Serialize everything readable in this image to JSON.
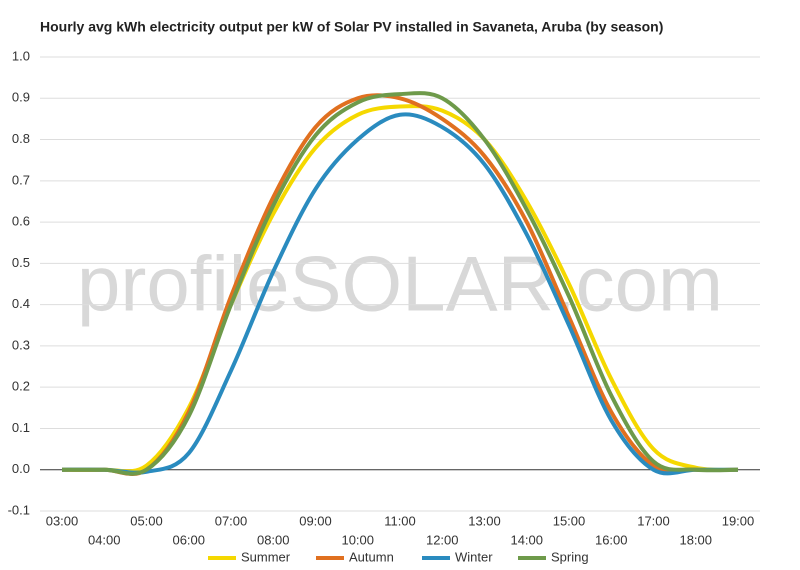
{
  "chart_data": {
    "type": "line",
    "title": "Hourly avg kWh electricity output per kW of Solar PV installed in Savaneta, Aruba (by season)",
    "watermark": "profileSOLAR.com",
    "categories": [
      "03:00",
      "04:00",
      "05:00",
      "06:00",
      "07:00",
      "08:00",
      "09:00",
      "10:00",
      "11:00",
      "12:00",
      "13:00",
      "14:00",
      "15:00",
      "16:00",
      "17:00",
      "18:00",
      "19:00"
    ],
    "series": [
      {
        "name": "Summer",
        "color": "#f5d800",
        "values": [
          0,
          0,
          0.01,
          0.15,
          0.4,
          0.62,
          0.78,
          0.86,
          0.88,
          0.87,
          0.8,
          0.65,
          0.45,
          0.22,
          0.05,
          0.005,
          0
        ]
      },
      {
        "name": "Autumn",
        "color": "#e07020",
        "values": [
          0,
          0,
          0,
          0.14,
          0.42,
          0.66,
          0.83,
          0.9,
          0.9,
          0.85,
          0.76,
          0.6,
          0.37,
          0.14,
          0.01,
          0,
          0
        ]
      },
      {
        "name": "Winter",
        "color": "#2a8bbf",
        "values": [
          0,
          0,
          -0.005,
          0.04,
          0.24,
          0.48,
          0.68,
          0.8,
          0.86,
          0.83,
          0.74,
          0.57,
          0.35,
          0.12,
          0,
          0,
          0
        ]
      },
      {
        "name": "Spring",
        "color": "#6e9a4a",
        "values": [
          0,
          0,
          0,
          0.13,
          0.4,
          0.64,
          0.81,
          0.89,
          0.91,
          0.9,
          0.8,
          0.63,
          0.42,
          0.18,
          0.02,
          0,
          0
        ]
      }
    ],
    "ylim": [
      -0.1,
      1.0
    ],
    "yticks": [
      -0.1,
      {
        "value": 0,
        "label": "0.0"
      },
      0.1,
      0.2,
      0.3,
      0.4,
      0.5,
      0.6,
      0.7,
      0.8,
      0.9,
      {
        "value": 1,
        "label": "1.0"
      }
    ],
    "grid": true
  }
}
